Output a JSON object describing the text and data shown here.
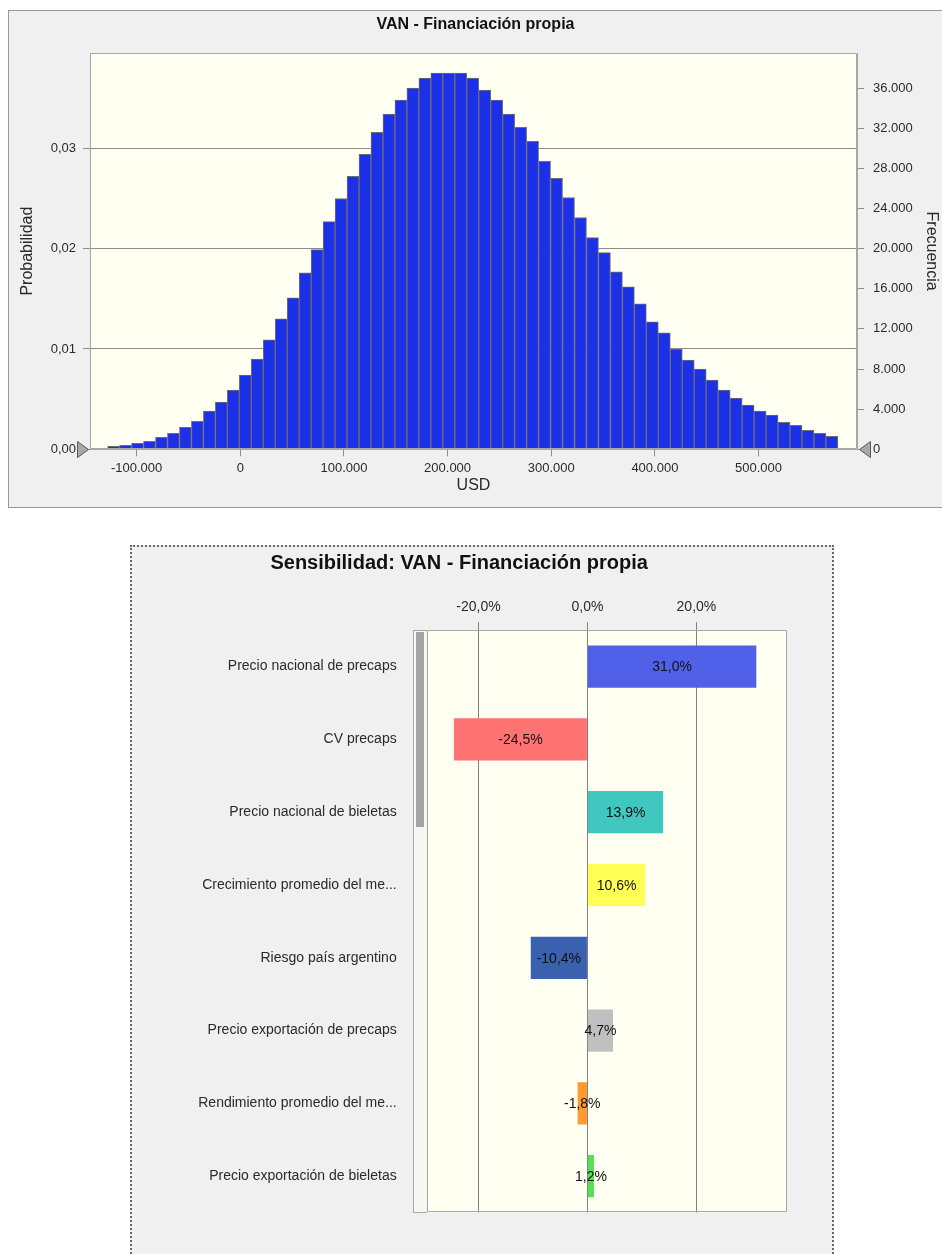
{
  "chart_data": [
    {
      "type": "histogram",
      "title": "VAN - Financiación propia",
      "xlabel": "USD",
      "ylabel": "Probabilidad",
      "y2label": "Frecuencia",
      "bins": [
        -128000,
        -116450,
        -104900,
        -93350,
        -81800,
        -70250,
        -58700,
        -47150,
        -35600,
        -24050,
        -12500,
        -950,
        10600,
        22150,
        33700,
        45250,
        56800,
        68350,
        79900,
        91450,
        103000,
        114550,
        126100,
        137650,
        149200,
        160750,
        172300,
        183850,
        195400,
        206950,
        218500,
        230050,
        241600,
        253150,
        264700,
        276250,
        287800,
        299350,
        310900,
        322450,
        334000,
        345550,
        357100,
        368650,
        380200,
        391750,
        403300,
        414850,
        426400,
        437950,
        449500,
        461050,
        472600,
        484150,
        495700,
        507250,
        518800,
        530350,
        541900,
        553450,
        565000,
        576550
      ],
      "values": [
        0.0003,
        0.0004,
        0.0006,
        0.0008,
        0.0012,
        0.0016,
        0.0022,
        0.0028,
        0.0038,
        0.0047,
        0.0059,
        0.0074,
        0.009,
        0.0109,
        0.013,
        0.0151,
        0.0176,
        0.0199,
        0.0227,
        0.025,
        0.0272,
        0.0294,
        0.0316,
        0.0334,
        0.0348,
        0.036,
        0.037,
        0.0375,
        0.0375,
        0.0375,
        0.037,
        0.0358,
        0.0348,
        0.0334,
        0.0321,
        0.0307,
        0.0287,
        0.027,
        0.0251,
        0.0231,
        0.0211,
        0.0196,
        0.0177,
        0.0162,
        0.0145,
        0.0127,
        0.0116,
        0.01,
        0.0089,
        0.008,
        0.0069,
        0.0059,
        0.0051,
        0.0044,
        0.0038,
        0.0034,
        0.0027,
        0.0024,
        0.0019,
        0.0016,
        0.0013
      ],
      "color": "#1c30e8",
      "xlim": [
        -145000,
        595000
      ],
      "xticks": [
        {
          "value": -100000,
          "label": "-100.000"
        },
        0,
        {
          "value": 100000,
          "label": "100.000"
        },
        {
          "value": 200000,
          "label": "200.000"
        },
        {
          "value": 300000,
          "label": "300.000"
        },
        {
          "value": 400000,
          "label": "400.000"
        },
        {
          "value": 500000,
          "label": "500.000"
        }
      ],
      "ylim": [
        0,
        0.0395
      ],
      "yticks": [
        {
          "value": 0,
          "label": "0,00"
        },
        {
          "value": 0.01,
          "label": "0,01"
        },
        {
          "value": 0.02,
          "label": "0,02"
        },
        {
          "value": 0.03,
          "label": "0,03"
        }
      ],
      "y2lim": [
        0,
        39500
      ],
      "y2ticks": [
        0,
        {
          "value": 4000,
          "label": "4.000"
        },
        {
          "value": 8000,
          "label": "8.000"
        },
        {
          "value": 12000,
          "label": "12.000"
        },
        {
          "value": 16000,
          "label": "16.000"
        },
        {
          "value": 20000,
          "label": "20.000"
        },
        {
          "value": 24000,
          "label": "24.000"
        },
        {
          "value": 28000,
          "label": "28.000"
        },
        {
          "value": 32000,
          "label": "32.000"
        },
        {
          "value": 36000,
          "label": "36.000"
        }
      ],
      "grid": "y"
    },
    {
      "type": "bar",
      "orientation": "horizontal",
      "title": "Sensibilidad: VAN - Financiación propia",
      "categories": [
        "Precio nacional de precaps",
        "CV precaps",
        "Precio nacional de bieletas",
        "Crecimiento promedio del me...",
        "Riesgo país argentino",
        "Precio exportación de precaps",
        "Rendimiento promedio del me...",
        "Precio exportación de bieletas"
      ],
      "values": [
        31.0,
        -24.5,
        13.9,
        10.6,
        -10.4,
        4.7,
        -1.8,
        1.2
      ],
      "colors": [
        "#5060e8",
        "#ff7373",
        "#40c8c0",
        "#ffff55",
        "#3a60b0",
        "#c0c0c0",
        "#ff9a30",
        "#55e055"
      ],
      "value_labels": [
        "31,0%",
        "-24,5%",
        "13,9%",
        "10,6%",
        "-10,4%",
        "4,7%",
        "-1,8%",
        "1,2%"
      ],
      "xlim": [
        -29.5,
        36.5
      ],
      "xticks": [
        {
          "value": -20,
          "label": "-20,0%"
        },
        {
          "value": 0,
          "label": "0,0%"
        },
        {
          "value": 20,
          "label": "20,0%"
        }
      ],
      "grid": "x"
    }
  ]
}
